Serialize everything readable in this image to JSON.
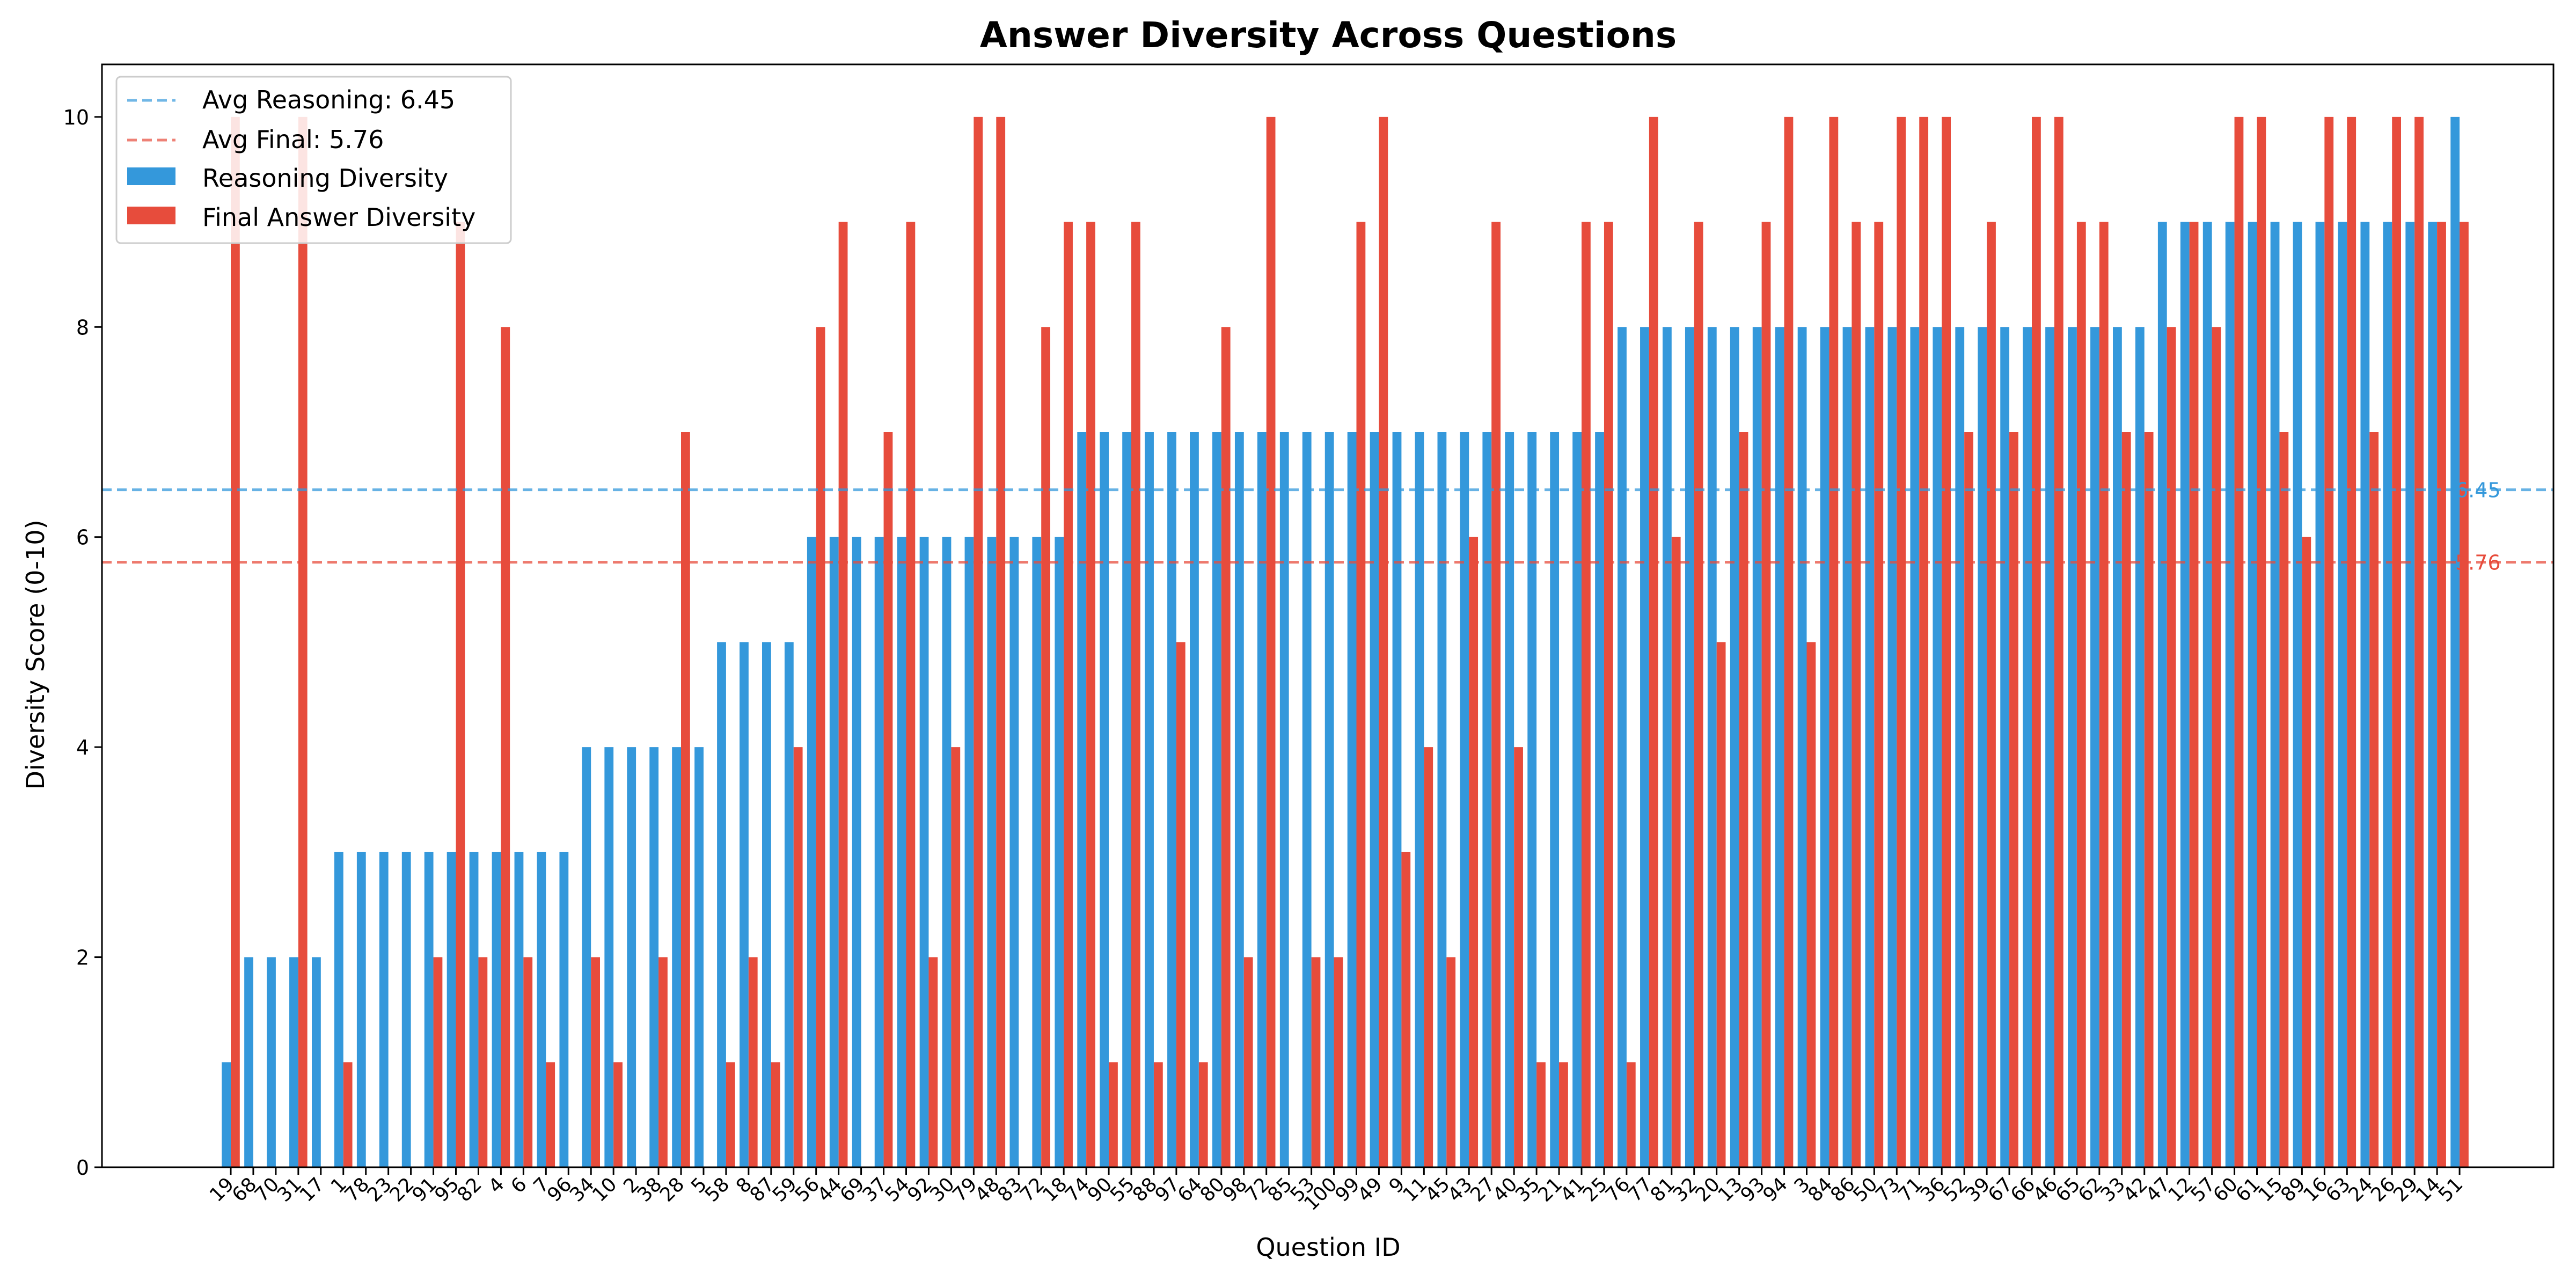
{
  "chart_data": {
    "type": "bar",
    "title": "Answer Diversity Across Questions",
    "xlabel": "Question ID",
    "ylabel": "Diversity Score (0-10)",
    "ylim": [
      0,
      10.5
    ],
    "yticks": [
      0,
      2,
      4,
      6,
      8,
      10
    ],
    "grid": false,
    "legend_position": "top-left",
    "categories": [
      "19",
      "68",
      "70",
      "31",
      "17",
      "1",
      "78",
      "23",
      "22",
      "91",
      "95",
      "82",
      "4",
      "6",
      "7",
      "96",
      "34",
      "10",
      "2",
      "38",
      "28",
      "5",
      "58",
      "8",
      "87",
      "59",
      "56",
      "44",
      "69",
      "37",
      "54",
      "92",
      "30",
      "79",
      "48",
      "83",
      "72",
      "18",
      "74",
      "90",
      "55",
      "88",
      "97",
      "64",
      "80",
      "98",
      "72",
      "85",
      "53",
      "100",
      "99",
      "49",
      "9",
      "11",
      "45",
      "43",
      "27",
      "40",
      "35",
      "21",
      "41",
      "25",
      "76",
      "77",
      "81",
      "32",
      "20",
      "13",
      "93",
      "94",
      "3",
      "84",
      "86",
      "50",
      "73",
      "71",
      "36",
      "52",
      "39",
      "67",
      "66",
      "46",
      "65",
      "62",
      "33",
      "42",
      "47",
      "12",
      "57",
      "60",
      "61",
      "15",
      "89",
      "16",
      "63",
      "24",
      "26",
      "29",
      "14",
      "51"
    ],
    "series": [
      {
        "name": "Reasoning Diversity",
        "color": "#3498db",
        "values": [
          1,
          2,
          2,
          2,
          2,
          3,
          3,
          3,
          3,
          3,
          3,
          3,
          3,
          3,
          3,
          3,
          4,
          4,
          4,
          4,
          4,
          4,
          5,
          5,
          5,
          5,
          6,
          6,
          6,
          6,
          6,
          6,
          6,
          6,
          6,
          6,
          6,
          6,
          7,
          7,
          7,
          7,
          7,
          7,
          7,
          7,
          7,
          7,
          7,
          7,
          7,
          7,
          7,
          7,
          7,
          7,
          7,
          7,
          7,
          7,
          7,
          7,
          8,
          8,
          8,
          8,
          8,
          8,
          8,
          8,
          8,
          8,
          8,
          8,
          8,
          8,
          8,
          8,
          8,
          8,
          8,
          8,
          8,
          8,
          8,
          8,
          9,
          9,
          9,
          9,
          9,
          9,
          9,
          9,
          9,
          9,
          9,
          9,
          9,
          10
        ]
      },
      {
        "name": "Final Answer Diversity",
        "color": "#e74c3c",
        "values": [
          10,
          0,
          0,
          10,
          0,
          1,
          0,
          0,
          0,
          2,
          9,
          2,
          8,
          2,
          1,
          0,
          2,
          1,
          0,
          2,
          7,
          0,
          1,
          2,
          1,
          4,
          8,
          9,
          0,
          7,
          9,
          2,
          4,
          10,
          10,
          0,
          8,
          9,
          9,
          1,
          9,
          1,
          5,
          1,
          8,
          2,
          10,
          0,
          2,
          2,
          9,
          10,
          3,
          4,
          2,
          6,
          9,
          4,
          1,
          1,
          9,
          9,
          1,
          10,
          6,
          9,
          5,
          7,
          9,
          10,
          5,
          10,
          9,
          9,
          10,
          10,
          10,
          7,
          9,
          7,
          10,
          10,
          9,
          9,
          7,
          7,
          8,
          9,
          8,
          10,
          10,
          7,
          6,
          10,
          10,
          7,
          10,
          10,
          9,
          9
        ]
      }
    ],
    "reference_lines": [
      {
        "legend": "Avg Reasoning: 6.45",
        "label": "6.45",
        "value": 6.45,
        "color": "#3498db"
      },
      {
        "legend": "Avg Final: 5.76",
        "label": "5.76",
        "value": 5.76,
        "color": "#e74c3c"
      }
    ]
  }
}
